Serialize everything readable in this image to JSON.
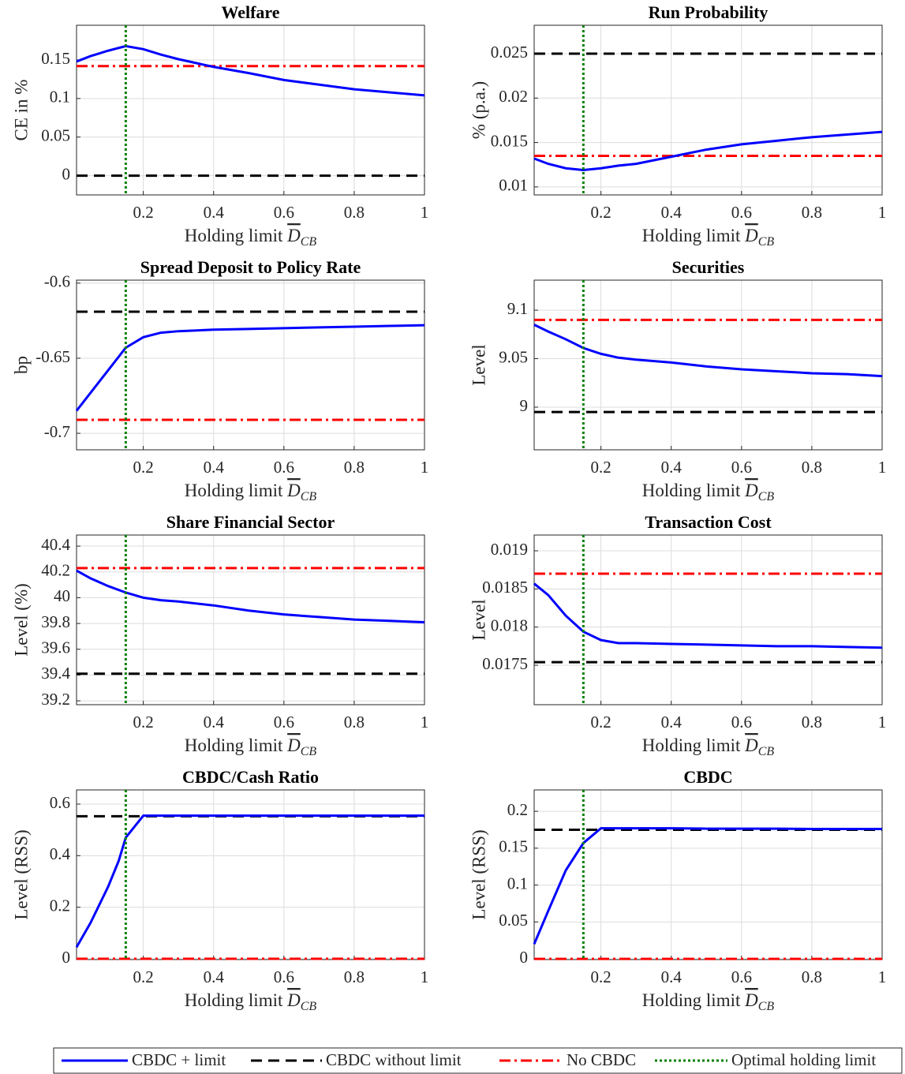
{
  "legend": [
    {
      "name": "CBDC + limit",
      "color": "#0000ff",
      "style": "solid"
    },
    {
      "name": "CBDC without limit",
      "color": "#000000",
      "style": "dashed"
    },
    {
      "name": "No CBDC",
      "color": "#ff0000",
      "style": "dashdot"
    },
    {
      "name": "Optimal holding limit",
      "color": "#008000",
      "style": "dotted"
    }
  ],
  "chart_data": [
    {
      "type": "line",
      "title": "Welfare",
      "ylabel": "CE in %",
      "xlabel": "Holding limit",
      "xlabel_symbol": "D",
      "xlabel_subscript": "CB",
      "x": [
        0.01,
        0.05,
        0.1,
        0.15,
        0.2,
        0.25,
        0.3,
        0.4,
        0.5,
        0.6,
        0.7,
        0.8,
        0.9,
        1
      ],
      "series": [
        {
          "values": [
            0.148,
            0.155,
            0.162,
            0.168,
            0.164,
            0.157,
            0.151,
            0.141,
            0.133,
            0.124,
            0.118,
            0.112,
            0.108,
            0.104
          ]
        }
      ],
      "hlines": [
        0,
        0.142
      ],
      "vline": 0.15,
      "xlim": [
        0.01,
        1
      ],
      "xticks": [
        0.2,
        0.4,
        0.6,
        0.8,
        1
      ],
      "ylim": [
        -0.025,
        0.195
      ],
      "yticks": [
        0,
        0.05,
        0.1,
        0.15
      ],
      "grid": true
    },
    {
      "type": "line",
      "title": "Run Probability",
      "ylabel": "% (p.a.)",
      "xlabel": "Holding limit",
      "xlabel_symbol": "D",
      "xlabel_subscript": "CB",
      "x": [
        0.01,
        0.05,
        0.1,
        0.15,
        0.2,
        0.25,
        0.3,
        0.4,
        0.5,
        0.6,
        0.7,
        0.8,
        0.9,
        1
      ],
      "series": [
        {
          "values": [
            0.0132,
            0.0126,
            0.0121,
            0.0119,
            0.0121,
            0.0124,
            0.0126,
            0.0134,
            0.0142,
            0.0148,
            0.0152,
            0.0156,
            0.0159,
            0.0162
          ]
        }
      ],
      "hlines": [
        0.025,
        0.0135
      ],
      "vline": 0.15,
      "xlim": [
        0.01,
        1
      ],
      "xticks": [
        0.2,
        0.4,
        0.6,
        0.8,
        1
      ],
      "ylim": [
        0.0091,
        0.0282
      ],
      "yticks": [
        0.01,
        0.015,
        0.02,
        0.025
      ],
      "grid": true
    },
    {
      "type": "line",
      "title": "Spread Deposit to Policy Rate",
      "ylabel": "bp",
      "xlabel": "Holding limit",
      "xlabel_symbol": "D",
      "xlabel_subscript": "CB",
      "x": [
        0.01,
        0.05,
        0.1,
        0.15,
        0.2,
        0.25,
        0.3,
        0.4,
        0.5,
        0.6,
        0.7,
        0.8,
        0.9,
        1
      ],
      "series": [
        {
          "values": [
            -0.685,
            -0.673,
            -0.658,
            -0.643,
            -0.636,
            -0.633,
            -0.632,
            -0.631,
            -0.6305,
            -0.63,
            -0.6295,
            -0.629,
            -0.6285,
            -0.628
          ]
        }
      ],
      "hlines": [
        -0.619,
        -0.691
      ],
      "vline": 0.15,
      "xlim": [
        0.01,
        1
      ],
      "xticks": [
        0.2,
        0.4,
        0.6,
        0.8,
        1
      ],
      "ylim": [
        -0.711,
        -0.598
      ],
      "yticks": [
        -0.7,
        -0.65,
        -0.6
      ],
      "grid": true
    },
    {
      "type": "line",
      "title": "Securities",
      "ylabel": "Level",
      "xlabel": "Holding limit",
      "xlabel_symbol": "D",
      "xlabel_subscript": "CB",
      "x": [
        0.01,
        0.05,
        0.1,
        0.15,
        0.2,
        0.25,
        0.3,
        0.4,
        0.5,
        0.6,
        0.7,
        0.8,
        0.9,
        1
      ],
      "series": [
        {
          "values": [
            9.085,
            9.078,
            9.07,
            9.061,
            9.055,
            9.051,
            9.049,
            9.046,
            9.042,
            9.039,
            9.037,
            9.035,
            9.034,
            9.032
          ]
        }
      ],
      "hlines": [
        8.995,
        9.09
      ],
      "vline": 0.15,
      "xlim": [
        0.01,
        1
      ],
      "xticks": [
        0.2,
        0.4,
        0.6,
        0.8,
        1
      ],
      "ylim": [
        8.956,
        9.131
      ],
      "yticks": [
        9,
        9.05,
        9.1
      ],
      "grid": true
    },
    {
      "type": "line",
      "title": "Share Financial Sector",
      "ylabel": "Level (%)",
      "xlabel": "Holding limit",
      "xlabel_symbol": "D",
      "xlabel_subscript": "CB",
      "x": [
        0.01,
        0.05,
        0.1,
        0.15,
        0.2,
        0.25,
        0.3,
        0.4,
        0.5,
        0.6,
        0.7,
        0.8,
        0.9,
        1
      ],
      "series": [
        {
          "values": [
            40.21,
            40.15,
            40.09,
            40.04,
            40,
            39.98,
            39.97,
            39.94,
            39.9,
            39.87,
            39.85,
            39.83,
            39.82,
            39.81
          ]
        }
      ],
      "hlines": [
        39.41,
        40.23
      ],
      "vline": 0.15,
      "xlim": [
        0.01,
        1
      ],
      "xticks": [
        0.2,
        0.4,
        0.6,
        0.8,
        1
      ],
      "ylim": [
        39.17,
        40.486
      ],
      "yticks": [
        39.2,
        39.4,
        39.6,
        39.8,
        40,
        40.2,
        40.4
      ],
      "grid": true
    },
    {
      "type": "line",
      "title": "Transaction Cost",
      "ylabel": "Level",
      "xlabel": "Holding limit",
      "xlabel_symbol": "D",
      "xlabel_subscript": "CB",
      "x": [
        0.01,
        0.05,
        0.1,
        0.15,
        0.2,
        0.25,
        0.3,
        0.4,
        0.5,
        0.6,
        0.7,
        0.8,
        0.9,
        1
      ],
      "series": [
        {
          "values": [
            0.01857,
            0.01842,
            0.01815,
            0.01794,
            0.01783,
            0.01779,
            0.01779,
            0.01778,
            0.01777,
            0.01776,
            0.01775,
            0.01775,
            0.01774,
            0.01773
          ]
        }
      ],
      "hlines": [
        0.01754,
        0.0187
      ],
      "vline": 0.15,
      "xlim": [
        0.01,
        1
      ],
      "xticks": [
        0.2,
        0.4,
        0.6,
        0.8,
        1
      ],
      "ylim": [
        0.016983,
        0.019207
      ],
      "yticks": [
        0.0175,
        0.018,
        0.0185,
        0.019
      ],
      "grid": true
    },
    {
      "type": "line",
      "title": "CBDC/Cash Ratio",
      "ylabel": "Level (RSS)",
      "xlabel": "Holding limit",
      "xlabel_symbol": "D",
      "xlabel_subscript": "CB",
      "x": [
        0.01,
        0.05,
        0.1,
        0.13,
        0.15,
        0.2,
        0.25,
        0.3,
        0.4,
        0.5,
        0.6,
        0.7,
        0.8,
        0.9,
        1
      ],
      "series": [
        {
          "values": [
            0.045,
            0.14,
            0.28,
            0.38,
            0.47,
            0.555,
            0.555,
            0.555,
            0.555,
            0.555,
            0.555,
            0.555,
            0.555,
            0.555,
            0.555
          ]
        }
      ],
      "hlines": [
        0.553,
        0
      ],
      "vline": 0.15,
      "xlim": [
        0.01,
        1
      ],
      "xticks": [
        0.2,
        0.4,
        0.6,
        0.8,
        1
      ],
      "ylim": [
        -0.003,
        0.655
      ],
      "yticks": [
        0,
        0.2,
        0.4,
        0.6
      ],
      "grid": true
    },
    {
      "type": "line",
      "title": "CBDC",
      "ylabel": "Level (RSS)",
      "xlabel": "Holding limit",
      "xlabel_symbol": "D",
      "xlabel_subscript": "CB",
      "x": [
        0.01,
        0.05,
        0.1,
        0.15,
        0.2,
        0.25,
        0.3,
        0.4,
        0.5,
        0.6,
        0.7,
        0.8,
        0.9,
        1
      ],
      "series": [
        {
          "values": [
            0.02,
            0.065,
            0.12,
            0.157,
            0.177,
            0.177,
            0.177,
            0.177,
            0.1765,
            0.1765,
            0.1765,
            0.176,
            0.176,
            0.176
          ]
        }
      ],
      "hlines": [
        0.175,
        0
      ],
      "vline": 0.15,
      "xlim": [
        0.01,
        1
      ],
      "xticks": [
        0.2,
        0.4,
        0.6,
        0.8,
        1
      ],
      "ylim": [
        -0.001,
        0.229
      ],
      "yticks": [
        0,
        0.05,
        0.1,
        0.15,
        0.2
      ],
      "grid": true
    }
  ]
}
